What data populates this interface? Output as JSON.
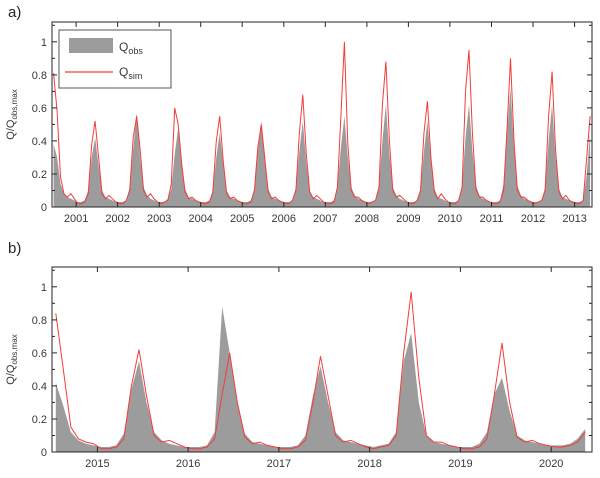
{
  "colors": {
    "obs_fill": "#9c9c9c",
    "sim_line": "#f23d3a",
    "axis": "#262626",
    "text": "#383838",
    "legend_border": "#555555",
    "background": "#ffffff"
  },
  "legend": {
    "entries": [
      {
        "swatch": "area",
        "main": "Q",
        "sub": "obs"
      },
      {
        "swatch": "line",
        "main": "Q",
        "sub": "sim"
      }
    ]
  },
  "chart_data": [
    {
      "panel": "a)",
      "type": "area",
      "ylabel_main": "Q/Q",
      "ylabel_sub": "obs,max",
      "x_start_year": 2000,
      "x_start_month": 6,
      "x_step_months": 1,
      "x_range": [
        2000.42,
        2013.42
      ],
      "ylim": [
        0,
        1.12
      ],
      "xticks": [
        2001,
        2002,
        2003,
        2004,
        2005,
        2006,
        2007,
        2008,
        2009,
        2010,
        2011,
        2012,
        2013
      ],
      "yticks": [
        0,
        0.2,
        0.4,
        0.6,
        0.8,
        1
      ],
      "ytick_labels": [
        "0",
        "0.2",
        "0.4",
        "0.6",
        "0.8",
        "1"
      ],
      "minor_ytick_step": 0.1,
      "grid": false,
      "has_legend": true,
      "series": [
        {
          "name": "Q_obs",
          "style": "area",
          "values": [
            0.38,
            0.3,
            0.14,
            0.08,
            0.06,
            0.05,
            0.04,
            0.03,
            0.03,
            0.04,
            0.1,
            0.3,
            0.42,
            0.25,
            0.1,
            0.06,
            0.05,
            0.04,
            0.03,
            0.03,
            0.03,
            0.04,
            0.12,
            0.35,
            0.57,
            0.3,
            0.12,
            0.07,
            0.05,
            0.04,
            0.03,
            0.03,
            0.03,
            0.05,
            0.11,
            0.32,
            0.48,
            0.28,
            0.11,
            0.06,
            0.05,
            0.04,
            0.03,
            0.03,
            0.03,
            0.04,
            0.1,
            0.3,
            0.45,
            0.26,
            0.1,
            0.06,
            0.05,
            0.04,
            0.03,
            0.03,
            0.03,
            0.04,
            0.11,
            0.33,
            0.52,
            0.28,
            0.11,
            0.06,
            0.05,
            0.04,
            0.03,
            0.03,
            0.03,
            0.04,
            0.12,
            0.34,
            0.52,
            0.27,
            0.1,
            0.06,
            0.05,
            0.04,
            0.03,
            0.03,
            0.03,
            0.04,
            0.12,
            0.36,
            0.55,
            0.3,
            0.12,
            0.07,
            0.05,
            0.04,
            0.03,
            0.03,
            0.03,
            0.04,
            0.13,
            0.4,
            0.62,
            0.32,
            0.12,
            0.07,
            0.05,
            0.04,
            0.03,
            0.03,
            0.03,
            0.04,
            0.11,
            0.34,
            0.52,
            0.28,
            0.11,
            0.06,
            0.05,
            0.04,
            0.03,
            0.03,
            0.03,
            0.04,
            0.13,
            0.42,
            0.62,
            0.34,
            0.13,
            0.07,
            0.05,
            0.04,
            0.03,
            0.03,
            0.03,
            0.04,
            0.14,
            0.45,
            0.72,
            0.36,
            0.13,
            0.07,
            0.05,
            0.04,
            0.03,
            0.03,
            0.03,
            0.04,
            0.12,
            0.4,
            0.62,
            0.3,
            0.11,
            0.06,
            0.05,
            0.04,
            0.03,
            0.03,
            0.03,
            0.04,
            0.2,
            0.45
          ]
        },
        {
          "name": "Q_sim",
          "style": "line",
          "values": [
            0.81,
            0.58,
            0.18,
            0.08,
            0.06,
            0.08,
            0.05,
            0.02,
            0.02,
            0.03,
            0.08,
            0.38,
            0.52,
            0.3,
            0.08,
            0.05,
            0.07,
            0.05,
            0.03,
            0.02,
            0.02,
            0.04,
            0.1,
            0.42,
            0.55,
            0.35,
            0.1,
            0.06,
            0.08,
            0.05,
            0.03,
            0.02,
            0.03,
            0.04,
            0.14,
            0.6,
            0.5,
            0.26,
            0.09,
            0.05,
            0.06,
            0.04,
            0.03,
            0.02,
            0.02,
            0.03,
            0.09,
            0.4,
            0.55,
            0.28,
            0.08,
            0.05,
            0.06,
            0.04,
            0.03,
            0.02,
            0.02,
            0.03,
            0.1,
            0.36,
            0.5,
            0.3,
            0.09,
            0.05,
            0.06,
            0.04,
            0.03,
            0.02,
            0.02,
            0.04,
            0.1,
            0.45,
            0.68,
            0.32,
            0.09,
            0.05,
            0.07,
            0.05,
            0.03,
            0.02,
            0.02,
            0.03,
            0.12,
            0.55,
            1.0,
            0.38,
            0.1,
            0.06,
            0.06,
            0.04,
            0.03,
            0.02,
            0.03,
            0.04,
            0.12,
            0.62,
            0.88,
            0.4,
            0.1,
            0.06,
            0.07,
            0.05,
            0.03,
            0.02,
            0.02,
            0.04,
            0.1,
            0.45,
            0.64,
            0.3,
            0.09,
            0.05,
            0.08,
            0.05,
            0.03,
            0.02,
            0.02,
            0.04,
            0.12,
            0.7,
            0.95,
            0.45,
            0.11,
            0.06,
            0.06,
            0.04,
            0.03,
            0.02,
            0.02,
            0.03,
            0.1,
            0.48,
            0.9,
            0.4,
            0.1,
            0.06,
            0.06,
            0.04,
            0.03,
            0.02,
            0.03,
            0.04,
            0.1,
            0.55,
            0.82,
            0.35,
            0.09,
            0.05,
            0.07,
            0.04,
            0.03,
            0.02,
            0.02,
            0.04,
            0.3,
            0.55
          ]
        }
      ]
    },
    {
      "panel": "b)",
      "type": "area",
      "ylabel_main": "Q/Q",
      "ylabel_sub": "obs,max",
      "x_start_year": 2014,
      "x_start_month": 7,
      "x_step_months": 1,
      "x_range": [
        2014.5,
        2020.45
      ],
      "ylim": [
        0,
        1.12
      ],
      "xticks": [
        2015,
        2016,
        2017,
        2018,
        2019,
        2020
      ],
      "yticks": [
        0,
        0.2,
        0.4,
        0.6,
        0.8,
        1
      ],
      "ytick_labels": [
        "0",
        "0.2",
        "0.4",
        "0.6",
        "0.8",
        "1"
      ],
      "minor_ytick_step": 0.1,
      "grid": false,
      "has_legend": false,
      "series": [
        {
          "name": "Q_obs",
          "style": "area",
          "values": [
            0.42,
            0.28,
            0.12,
            0.07,
            0.05,
            0.04,
            0.03,
            0.03,
            0.04,
            0.11,
            0.38,
            0.55,
            0.3,
            0.12,
            0.07,
            0.05,
            0.04,
            0.03,
            0.03,
            0.03,
            0.04,
            0.12,
            0.88,
            0.6,
            0.3,
            0.11,
            0.06,
            0.05,
            0.04,
            0.03,
            0.03,
            0.03,
            0.04,
            0.1,
            0.34,
            0.52,
            0.3,
            0.12,
            0.07,
            0.06,
            0.05,
            0.04,
            0.03,
            0.04,
            0.05,
            0.12,
            0.55,
            0.72,
            0.3,
            0.1,
            0.06,
            0.05,
            0.04,
            0.03,
            0.03,
            0.03,
            0.05,
            0.12,
            0.35,
            0.45,
            0.25,
            0.1,
            0.07,
            0.06,
            0.05,
            0.04,
            0.04,
            0.04,
            0.05,
            0.08,
            0.14
          ]
        },
        {
          "name": "Q_sim",
          "style": "line",
          "values": [
            0.84,
            0.5,
            0.15,
            0.08,
            0.06,
            0.05,
            0.02,
            0.02,
            0.03,
            0.08,
            0.4,
            0.62,
            0.34,
            0.1,
            0.06,
            0.07,
            0.05,
            0.03,
            0.02,
            0.02,
            0.03,
            0.08,
            0.35,
            0.6,
            0.3,
            0.09,
            0.05,
            0.06,
            0.04,
            0.03,
            0.02,
            0.02,
            0.03,
            0.07,
            0.3,
            0.58,
            0.34,
            0.1,
            0.06,
            0.07,
            0.05,
            0.03,
            0.02,
            0.03,
            0.04,
            0.1,
            0.6,
            0.97,
            0.45,
            0.1,
            0.06,
            0.06,
            0.04,
            0.03,
            0.02,
            0.02,
            0.03,
            0.08,
            0.35,
            0.66,
            0.3,
            0.09,
            0.06,
            0.07,
            0.05,
            0.04,
            0.03,
            0.03,
            0.04,
            0.06,
            0.12
          ]
        }
      ]
    }
  ]
}
